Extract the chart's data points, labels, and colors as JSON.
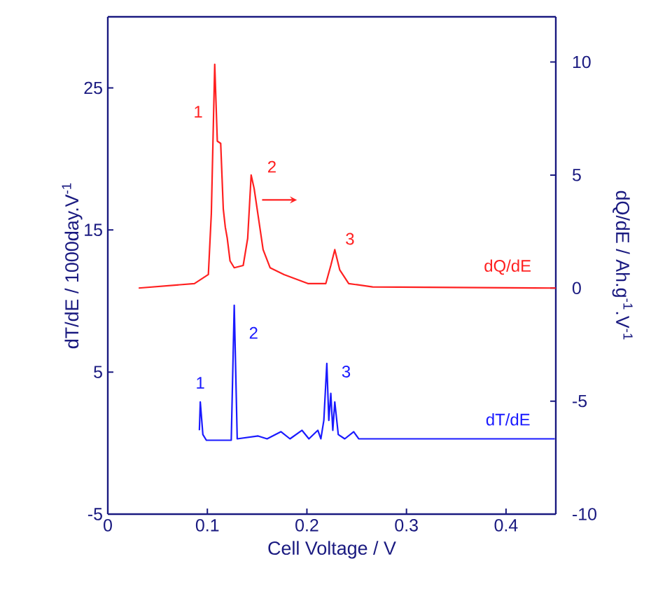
{
  "chart_data": {
    "type": "line",
    "xlabel": "Cell Voltage / V",
    "ylabel": "dT/dE / 1000day.V$^{-1}$",
    "y2label": "dQ/dE / Ah.g$^{-1}$.V$^{-1}$",
    "xlim": [
      0,
      0.45
    ],
    "xticks": [
      0,
      0.1,
      0.2,
      0.3,
      0.4
    ],
    "ylim": [
      -5,
      30
    ],
    "yticks": [
      -5,
      5,
      15,
      25
    ],
    "y2lim": [
      -10,
      12
    ],
    "y2ticks": [
      -10,
      -5,
      0,
      5,
      10
    ],
    "grid": false,
    "legend": false,
    "marker": "none",
    "line_style": "solid",
    "series": [
      {
        "name": "dQ/dE",
        "color": "#ff2020",
        "axis": "y2",
        "x": [
          0.031,
          0.087,
          0.101,
          0.104,
          0.1074,
          0.11,
          0.1134,
          0.116,
          0.118,
          0.12,
          0.1228,
          0.127,
          0.136,
          0.1405,
          0.144,
          0.147,
          0.152,
          0.156,
          0.163,
          0.177,
          0.201,
          0.219,
          0.224,
          0.228,
          0.233,
          0.242,
          0.266,
          0.45
        ],
        "values": [
          0,
          0.2,
          0.6,
          3.3,
          9.9,
          6.5,
          6.4,
          3.5,
          2.7,
          2.2,
          1.2,
          0.9,
          1.0,
          2.2,
          5.0,
          4.4,
          2.9,
          1.7,
          0.9,
          0.6,
          0.2,
          0.2,
          1.0,
          1.7,
          0.8,
          0.2,
          0.05,
          0
        ]
      },
      {
        "name": "dT/dE",
        "color": "#1a1aff",
        "x": [
          0.092,
          0.0929,
          0.0955,
          0.099,
          0.124,
          0.127,
          0.13,
          0.151,
          0.16,
          0.174,
          0.183,
          0.195,
          0.202,
          0.211,
          0.214,
          0.217,
          0.22,
          0.222,
          0.224,
          0.226,
          0.228,
          0.2315,
          0.238,
          0.247,
          0.252,
          0.449
        ],
        "values": [
          0.9,
          2.9,
          0.6,
          0.2,
          0.2,
          9.7,
          0.3,
          0.5,
          0.3,
          0.8,
          0.3,
          0.9,
          0.3,
          0.9,
          0.3,
          1.6,
          5.6,
          1.6,
          3.5,
          0.9,
          2.9,
          0.6,
          0.3,
          0.8,
          0.3,
          0.3
        ]
      }
    ],
    "annotations": [
      {
        "text": "1",
        "x": 0.1074,
        "y": 26.66
      },
      {
        "text": "2",
        "x": 0.144,
        "y": 18.86
      },
      {
        "text": "3",
        "x": 0.228,
        "y": 13.61
      },
      {
        "text": "1",
        "x": 0.0929,
        "y": 2.9
      },
      {
        "text": "2",
        "x": 0.127,
        "y": 9.7
      },
      {
        "text": "3",
        "x": 0.22,
        "y": 5.6
      }
    ]
  }
}
